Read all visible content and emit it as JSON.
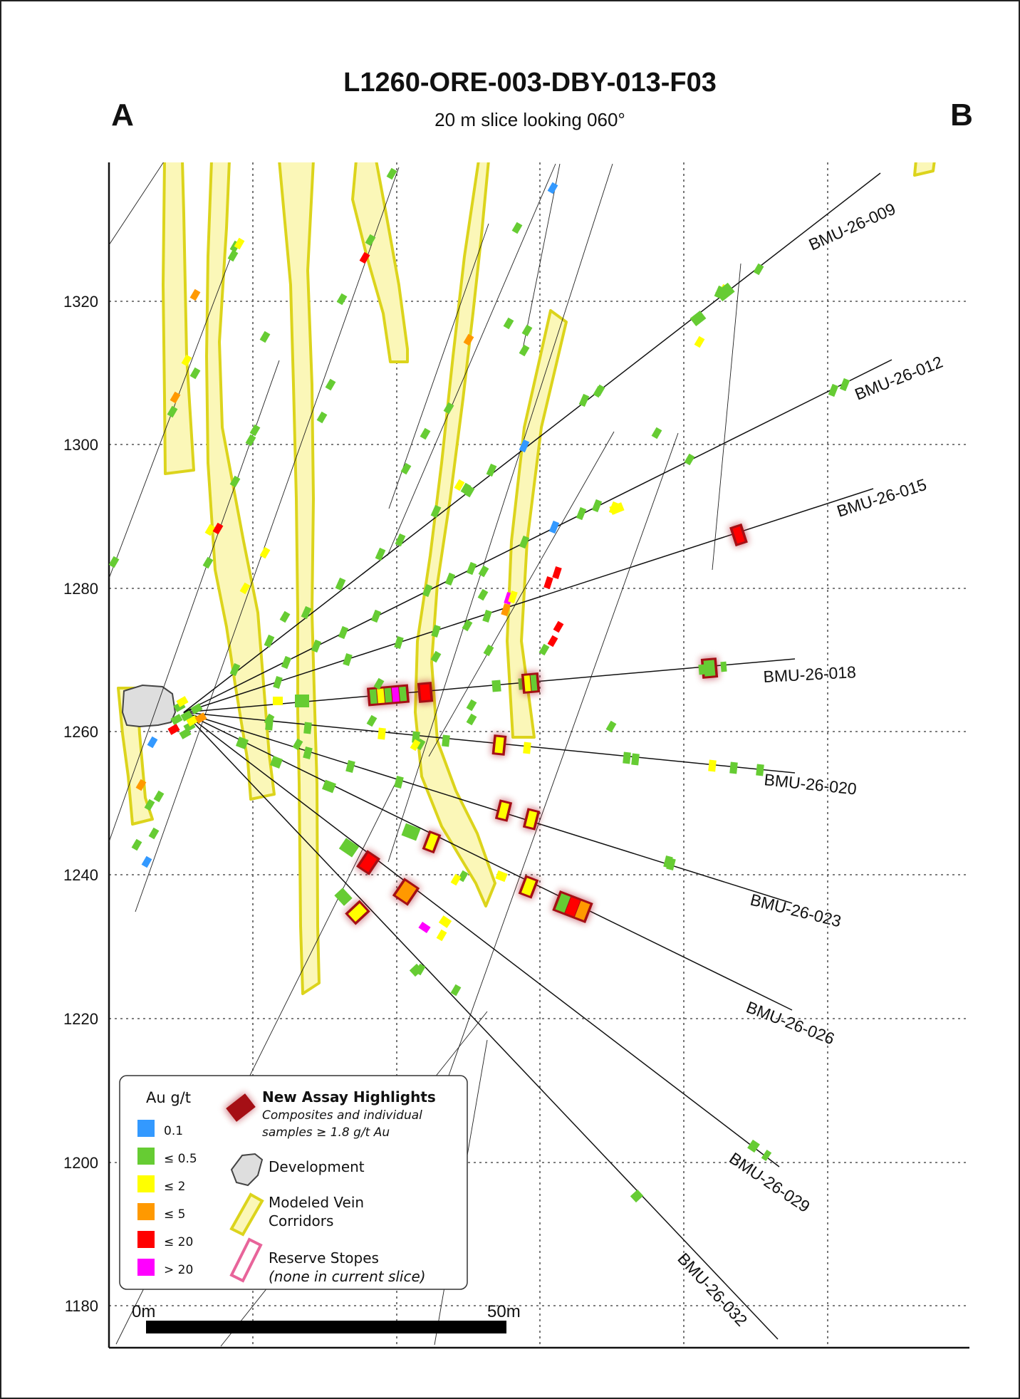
{
  "title": "L1260-ORE-003-DBY-013-F03",
  "subtitle": "20 m slice looking 060°",
  "section_ends": {
    "left": "A",
    "right": "B"
  },
  "elevation_axis": {
    "tick_labels": [
      "1320",
      "1300",
      "1280",
      "1260",
      "1240",
      "1220",
      "1200",
      "1180"
    ],
    "values": [
      1320,
      1300,
      1280,
      1260,
      1240,
      1220,
      1200,
      1180
    ]
  },
  "drillholes": [
    {
      "name": "BMU-26-009",
      "azimuth_deg": -24.0
    },
    {
      "name": "BMU-26-012",
      "azimuth_deg": -21.5
    },
    {
      "name": "BMU-26-015",
      "azimuth_deg": -17.5
    },
    {
      "name": "BMU-26-018",
      "azimuth_deg": 3.0
    },
    {
      "name": "BMU-26-020",
      "azimuth_deg": 6.0
    },
    {
      "name": "BMU-26-023",
      "azimuth_deg": 14.0
    },
    {
      "name": "BMU-26-026",
      "azimuth_deg": 21.0
    },
    {
      "name": "BMU-26-029",
      "azimuth_deg": 34.0
    },
    {
      "name": "BMU-26-032",
      "azimuth_deg": 47.0
    }
  ],
  "legend": {
    "grade_title": "Au g/t",
    "grade_classes": [
      {
        "label": "0.1",
        "color": "#3399ff"
      },
      {
        "label": "≤ 0.5",
        "color": "#66cc33"
      },
      {
        "label": "≤ 2",
        "color": "#ffff00"
      },
      {
        "label": "≤ 5",
        "color": "#ff9900"
      },
      {
        "label": "≤ 20",
        "color": "#ff0000"
      },
      {
        "label": "> 20",
        "color": "#ff00ff"
      }
    ],
    "highlight_title": "New Assay Highlights",
    "highlight_desc_1": "Composites and individual",
    "highlight_desc_2": "samples ≥ 1.8 g/t Au",
    "development": "Development",
    "vein_1": "Modeled Vein",
    "vein_2": "Corridors",
    "stopes": "Reserve Stopes",
    "stopes_note": "(none in current slice)"
  },
  "scale_bar": {
    "start_label": "0m",
    "end_label": "50m"
  },
  "colors": {
    "vein_fill": "#fbf7b8",
    "vein_edge": "#dcd41c",
    "highlight": "#a50f15",
    "stope": "#e8649a"
  }
}
